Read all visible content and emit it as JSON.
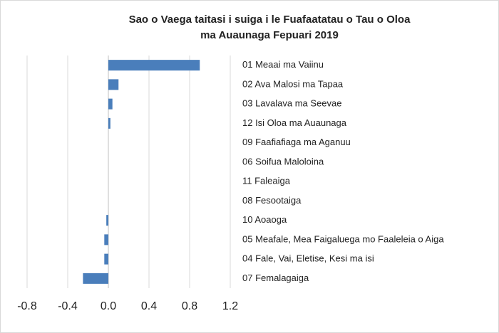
{
  "chart_data": {
    "type": "bar",
    "orientation": "horizontal",
    "title": [
      "Sao o Vaega taitasi i suiga i le Fuafaatatau o Tau o Oloa",
      "ma Auaunaga Fepuari 2019"
    ],
    "categories": [
      "01 Meaai ma Vaiinu",
      "02 Ava Malosi ma Tapaa",
      "03 Lavalava ma Seevae",
      "12 Isi Oloa ma Auaunaga",
      "09 Faafiafiaga ma Aganuu",
      "06 Soifua Maloloina",
      "11 Faleaiga",
      "08 Fesootaiga",
      "10 Aoaoga",
      "05 Meafale, Mea Faigaluega mo Faaleleia o Aiga",
      "04 Fale, Vai, Eletise, Kesi ma isi",
      "07 Femalagaiga"
    ],
    "values": [
      0.9,
      0.1,
      0.04,
      0.02,
      0,
      0,
      0,
      0,
      -0.02,
      -0.04,
      -0.04,
      -0.25
    ],
    "color": "#4a7ebb",
    "xlim": [
      -0.8,
      1.2
    ],
    "xticks": [
      -0.8,
      -0.4,
      {
        "value": 0,
        "label": "0.0"
      },
      0.4,
      0.8,
      1.2
    ],
    "grid": true
  }
}
